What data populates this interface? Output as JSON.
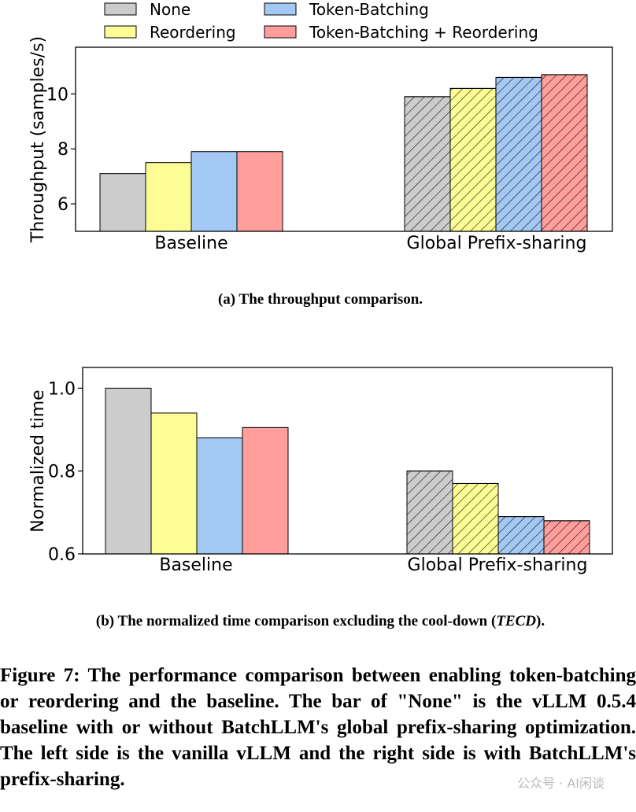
{
  "legend": {
    "items": [
      {
        "key": "none",
        "label": "None",
        "color": "#cccccc"
      },
      {
        "key": "reordering",
        "label": "Reordering",
        "color": "#fdfd96"
      },
      {
        "key": "token_batching",
        "label": "Token-Batching",
        "color": "#a3c8f4"
      },
      {
        "key": "both",
        "label": "Token-Batching + Reordering",
        "color": "#ff9e9a"
      }
    ]
  },
  "chart_data": [
    {
      "type": "bar",
      "title": "(a) The throughput comparison.",
      "ylabel": "Throughput (samples/s)",
      "xlabel": "",
      "categories": [
        "Baseline",
        "Global Prefix-sharing"
      ],
      "hatched_categories": [
        "Global Prefix-sharing"
      ],
      "series": [
        {
          "name": "None",
          "values": [
            7.1,
            9.9
          ]
        },
        {
          "name": "Reordering",
          "values": [
            7.5,
            10.2
          ]
        },
        {
          "name": "Token-Batching",
          "values": [
            7.9,
            10.6
          ]
        },
        {
          "name": "Token-Batching + Reordering",
          "values": [
            7.9,
            10.7
          ]
        }
      ],
      "ylim": [
        5,
        11.7
      ],
      "yticks": [
        6,
        8,
        10
      ]
    },
    {
      "type": "bar",
      "title": "(b) The normalized time comparison excluding the cool-down (TECD).",
      "title_parts": {
        "before": "(b) The normalized time comparison excluding the cool-down (",
        "italic": "TECD",
        "after": ")."
      },
      "ylabel": "Normalized time",
      "xlabel": "",
      "categories": [
        "Baseline",
        "Global Prefix-sharing"
      ],
      "hatched_categories": [
        "Global Prefix-sharing"
      ],
      "series": [
        {
          "name": "None",
          "values": [
            1.0,
            0.8
          ]
        },
        {
          "name": "Reordering",
          "values": [
            0.94,
            0.77
          ]
        },
        {
          "name": "Token-Batching",
          "values": [
            0.88,
            0.69
          ]
        },
        {
          "name": "Token-Batching + Reordering",
          "values": [
            0.905,
            0.68
          ]
        }
      ],
      "ylim": [
        0.6,
        1.05
      ],
      "yticks": [
        "0.6",
        "0.8",
        "1.0"
      ]
    }
  ],
  "caption": "Figure 7: The performance comparison between enabling token-batching or reordering and the baseline. The bar of \"None\" is the vLLM 0.5.4 baseline with or without BatchLLM's global prefix-sharing optimization. The left side is the vanilla vLLM and the right side is with BatchLLM's prefix-sharing.",
  "watermark": "公众号 · AI闲谈"
}
